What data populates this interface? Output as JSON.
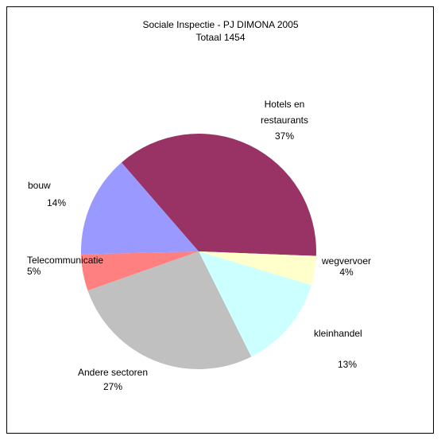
{
  "chart_data": {
    "type": "pie",
    "title": "Sociale Inspectie - PJ DIMONA 2005",
    "subtitle": "Totaal 1454",
    "slices": [
      {
        "label": "Hotels en restaurants",
        "percent_label": "37%",
        "value": 37,
        "color": "#993366"
      },
      {
        "label": "wegvervoer",
        "percent_label": "4%",
        "value": 4,
        "color": "#FFFFCC"
      },
      {
        "label": "kleinhandel",
        "percent_label": "13%",
        "value": 13,
        "color": "#CCFFFF"
      },
      {
        "label": "Andere sectoren",
        "percent_label": "27%",
        "value": 27,
        "color": "#C0C0C0"
      },
      {
        "label": "Telecommunicatie",
        "percent_label": "5%",
        "value": 5,
        "color": "#FF8080"
      },
      {
        "label": "bouw",
        "percent_label": "14%",
        "value": 14,
        "color": "#9999FF"
      }
    ]
  }
}
